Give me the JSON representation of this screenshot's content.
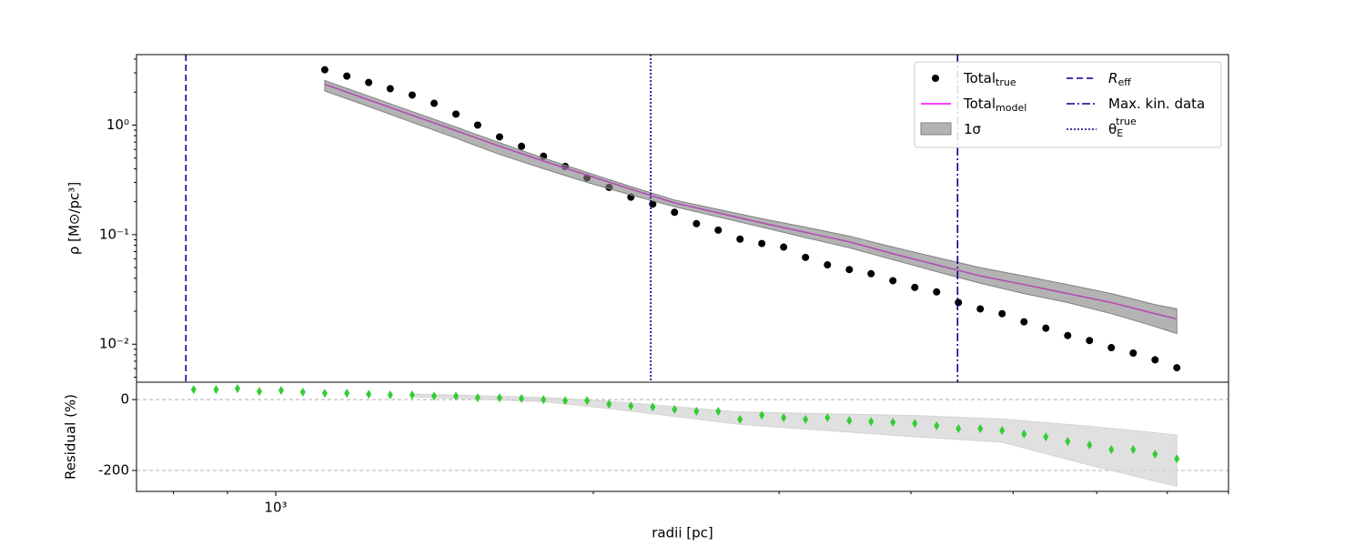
{
  "chart_data": [
    {
      "type": "line",
      "ylabel": "ρ [M⊙/pc³]",
      "log_x": true,
      "log_y": true,
      "xlim": [
        738,
        8000
      ],
      "ylim": [
        0.0045,
        4.4
      ],
      "yticks": [
        {
          "value": 1,
          "label": "10⁰"
        },
        {
          "value": 0.1,
          "label": "10⁻¹"
        },
        {
          "value": 0.01,
          "label": "10⁻²"
        }
      ],
      "yminorticks": [
        0.005,
        0.006,
        0.007,
        0.008,
        0.009,
        0.02,
        0.03,
        0.04,
        0.05,
        0.06,
        0.07,
        0.08,
        0.09,
        0.2,
        0.3,
        0.4,
        0.5,
        0.6,
        0.7,
        0.8,
        0.9,
        2,
        3,
        4
      ],
      "legend": "upper right",
      "series": [
        {
          "name": "Total",
          "sub": "true",
          "kind": "scatter",
          "color": "#000000",
          "x": [
            1113,
            1168,
            1225,
            1284,
            1347,
            1413,
            1482,
            1554,
            1630,
            1710,
            1794,
            1881,
            1973,
            2070,
            2171,
            2277,
            2388,
            2505,
            2627,
            2755,
            2889,
            3030,
            3178,
            3334,
            3497,
            3667,
            3846,
            4034,
            4231,
            4437,
            4654,
            4881,
            5120,
            5370,
            5632,
            5907,
            6195,
            6498,
            6815,
            7147
          ],
          "values": [
            3.2,
            2.8,
            2.45,
            2.15,
            1.88,
            1.58,
            1.26,
            1.0,
            0.78,
            0.64,
            0.52,
            0.42,
            0.33,
            0.27,
            0.22,
            0.19,
            0.16,
            0.126,
            0.11,
            0.091,
            0.083,
            0.077,
            0.062,
            0.053,
            0.048,
            0.044,
            0.038,
            0.033,
            0.03,
            0.024,
            0.021,
            0.019,
            0.016,
            0.014,
            0.012,
            0.0108,
            0.0093,
            0.0083,
            0.0072,
            0.0061
          ]
        },
        {
          "name": "Total",
          "sub": "model",
          "kind": "line",
          "color": "#ff00ff",
          "x": [
            1113,
            1225,
            1347,
            1482,
            1630,
            1794,
            1973,
            2171,
            2388,
            2627,
            2889,
            3178,
            3497,
            3846,
            4231,
            4654,
            5120,
            5632,
            6195,
            6815,
            7147
          ],
          "values": [
            2.36,
            1.7,
            1.23,
            0.89,
            0.64,
            0.47,
            0.35,
            0.26,
            0.195,
            0.158,
            0.128,
            0.105,
            0.086,
            0.067,
            0.053,
            0.042,
            0.035,
            0.029,
            0.024,
            0.019,
            0.017
          ]
        },
        {
          "name": "1σ",
          "kind": "band",
          "color": "#808080",
          "x": [
            1113,
            1225,
            1347,
            1482,
            1630,
            1794,
            1973,
            2171,
            2388,
            2627,
            2889,
            3178,
            3497,
            3846,
            4231,
            4654,
            5120,
            5632,
            6195,
            6815,
            7147
          ],
          "upper": [
            2.55,
            1.84,
            1.33,
            0.96,
            0.69,
            0.5,
            0.37,
            0.275,
            0.207,
            0.17,
            0.14,
            0.117,
            0.097,
            0.077,
            0.062,
            0.05,
            0.042,
            0.035,
            0.029,
            0.023,
            0.021
          ],
          "lower": [
            2.05,
            1.48,
            1.06,
            0.76,
            0.54,
            0.4,
            0.3,
            0.23,
            0.18,
            0.145,
            0.117,
            0.094,
            0.076,
            0.059,
            0.046,
            0.036,
            0.029,
            0.024,
            0.019,
            0.0145,
            0.0125
          ]
        }
      ],
      "vlines": [
        {
          "name": "R",
          "sub": "eff",
          "x": 822,
          "color": "#00008b",
          "style": "dashed"
        },
        {
          "name": "Max. kin. data",
          "x": 4429,
          "color": "#00008b",
          "style": "dashdot"
        },
        {
          "name": "θ",
          "sub": "E",
          "sup": "true",
          "x": 2267,
          "color": "#00008b",
          "style": "dotted"
        }
      ]
    },
    {
      "type": "scatter",
      "xlabel": "radii [pc]",
      "ylabel": "Residual (%)",
      "log_x": true,
      "xlim": [
        738,
        8000
      ],
      "ylim": [
        -259,
        49
      ],
      "xticks": [
        {
          "value": 1000,
          "label": "10³"
        }
      ],
      "xminorticks": [
        800,
        900,
        2000,
        3000,
        4000,
        5000,
        6000,
        7000,
        8000
      ],
      "yticks": [
        -200,
        0
      ],
      "grid": true,
      "series": [
        {
          "kind": "band",
          "color": "#d3d3d3",
          "x": [
            1347,
            1794,
            2070,
            2755,
            4034,
            4881,
            5907,
            7147
          ],
          "upper": [
            16,
            6,
            -5,
            -35,
            -45,
            -55,
            -75,
            -100
          ],
          "lower": [
            8,
            -6,
            -25,
            -70,
            -105,
            -120,
            -185,
            -245
          ]
        },
        {
          "kind": "scatter",
          "marker": "diamond",
          "color": "#32cd32",
          "x": [
            836,
            878,
            920,
            965,
            1012,
            1061,
            1113,
            1168,
            1225,
            1284,
            1347,
            1413,
            1482,
            1554,
            1630,
            1710,
            1794,
            1881,
            1973,
            2070,
            2171,
            2277,
            2388,
            2505,
            2627,
            2755,
            2889,
            3030,
            3178,
            3334,
            3497,
            3667,
            3846,
            4034,
            4231,
            4437,
            4654,
            4881,
            5120,
            5370,
            5632,
            5907,
            6195,
            6498,
            6815,
            7147
          ],
          "values": [
            28,
            28,
            31,
            23,
            26,
            21,
            18,
            18,
            15,
            13,
            13,
            10,
            10,
            5,
            5,
            3,
            0,
            -3,
            -3,
            -13,
            -18,
            -21,
            -28,
            -33,
            -33,
            -56,
            -44,
            -51,
            -56,
            -51,
            -59,
            -62,
            -64,
            -67,
            -74,
            -82,
            -82,
            -87,
            -97,
            -105,
            -118,
            -128,
            -141,
            -141,
            -154,
            -167
          ]
        }
      ]
    }
  ]
}
